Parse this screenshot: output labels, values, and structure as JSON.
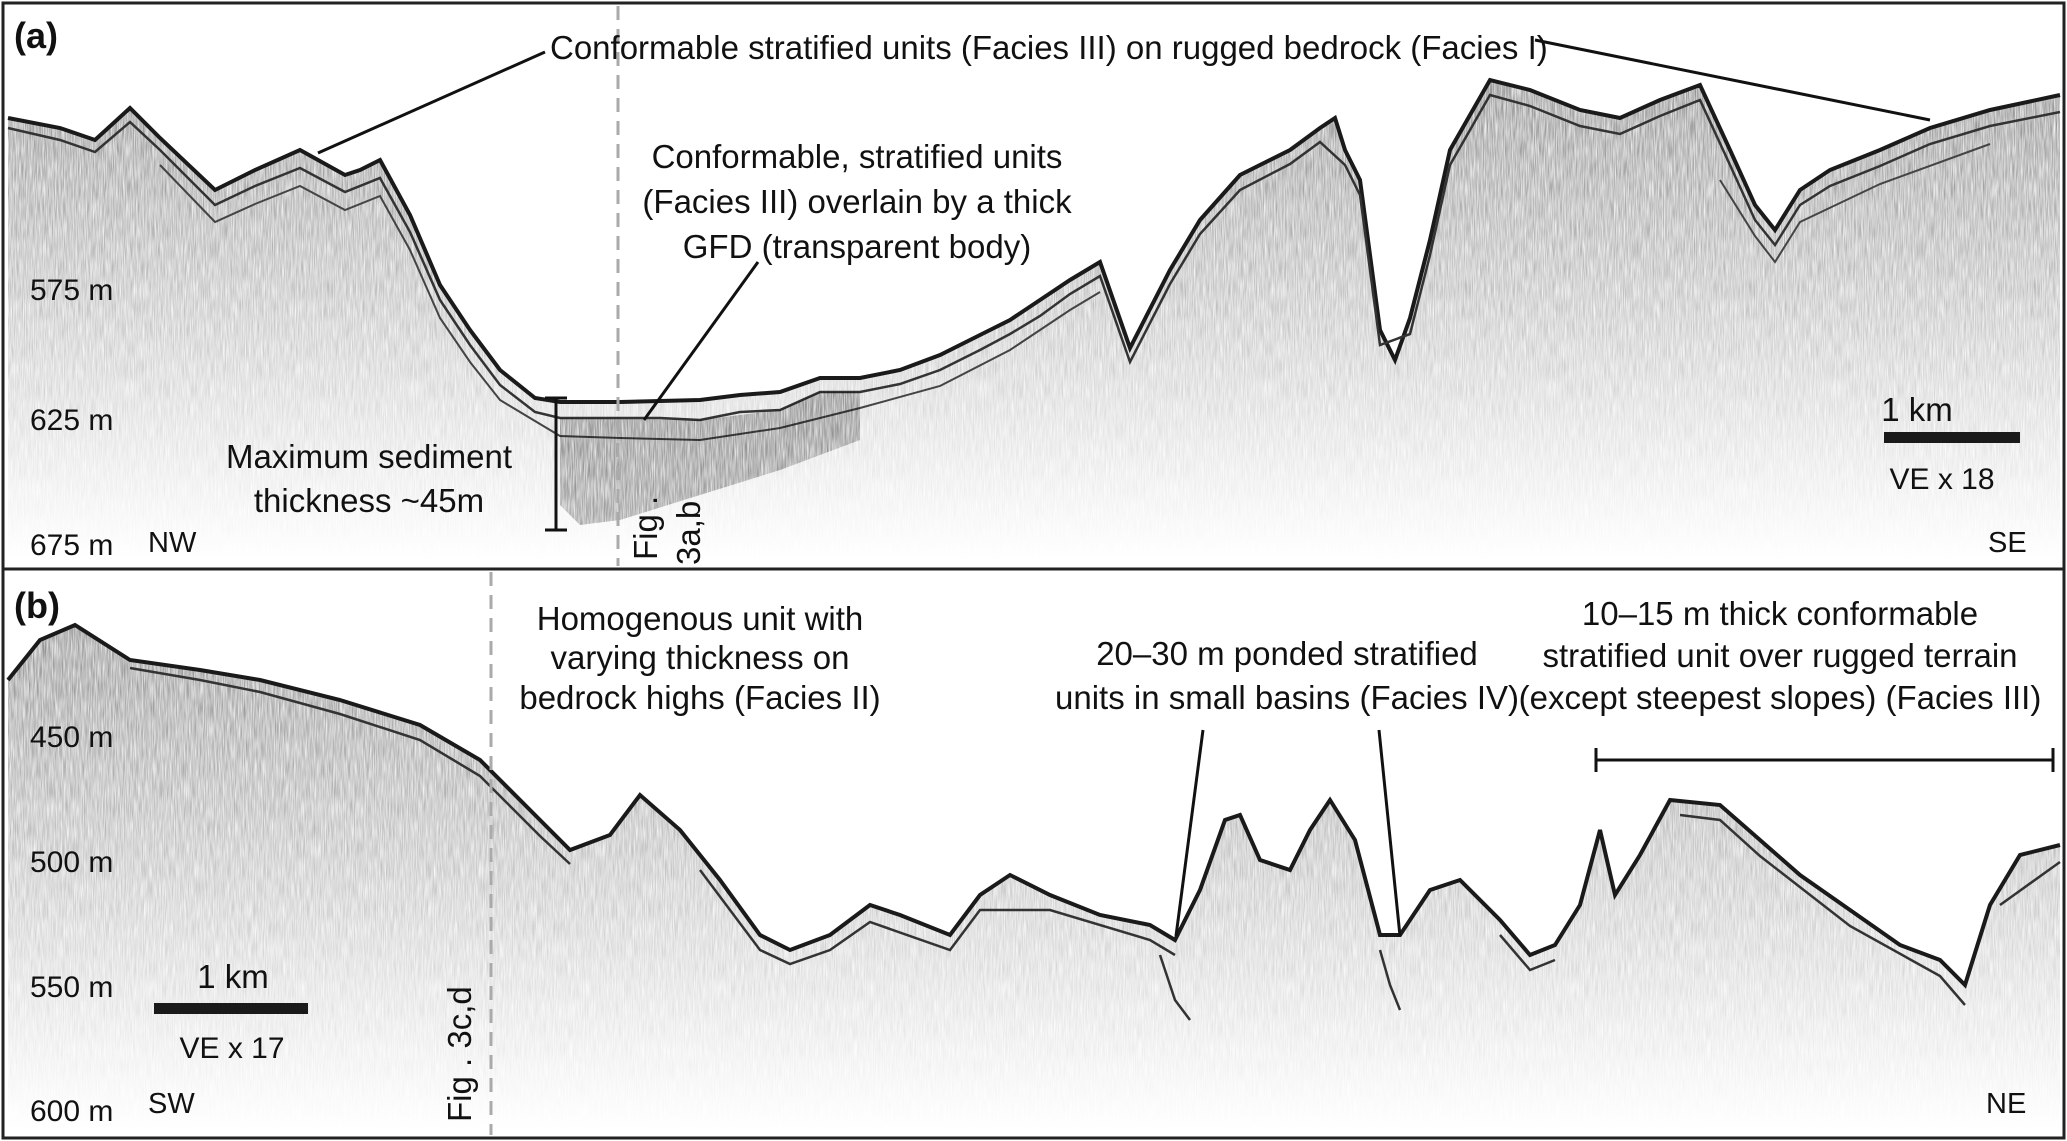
{
  "panels": [
    {
      "id": "a",
      "letter": "(a)",
      "depth_ticks": [
        {
          "value": 575,
          "text": "575 m"
        },
        {
          "value": 625,
          "text": "625 m"
        },
        {
          "value": 675,
          "text": "675 m"
        }
      ],
      "direction_left": "NW",
      "direction_right": "SE",
      "scale": {
        "length": "1 km",
        "ve": "VE x 18"
      },
      "figure_refs": [
        "Fig .",
        "3a,b"
      ],
      "annotations": {
        "top_line": "Conformable stratified units (Facies III) on rugged bedrock (Facies I)",
        "gfd": [
          "Conformable, stratified units",
          "(Facies III) overlain by a thick",
          "GFD (transparent body)"
        ],
        "thickness": [
          "Maximum sediment",
          "thickness ~45m"
        ]
      }
    },
    {
      "id": "b",
      "letter": "(b)",
      "depth_ticks": [
        {
          "value": 450,
          "text": "450 m"
        },
        {
          "value": 500,
          "text": "500 m"
        },
        {
          "value": 550,
          "text": "550 m"
        },
        {
          "value": 600,
          "text": "600 m"
        }
      ],
      "direction_left": "SW",
      "direction_right": "NE",
      "scale": {
        "length": "1 km",
        "ve": "VE x 17"
      },
      "figure_ref": "Fig . 3c,d",
      "annotations": {
        "homogenous": [
          "Homogenous unit with",
          "varying thickness on",
          "bedrock highs (Facies II)"
        ],
        "ponded": [
          "20–30 m ponded stratified",
          "units in small basins (Facies IV)"
        ],
        "conformable": [
          "10–15 m thick conformable",
          "stratified unit over rugged terrain",
          "(except steepest slopes) (Facies III)"
        ]
      }
    }
  ]
}
